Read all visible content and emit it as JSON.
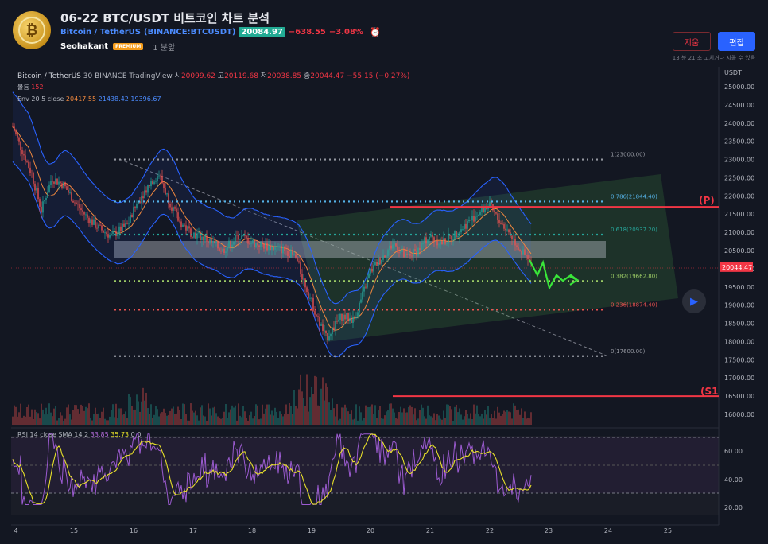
{
  "header": {
    "title": "06-22 BTC/USDT 비트코인 차트 분석",
    "symbol_name": "Bitcoin / TetherUS",
    "symbol_paren_open": "(",
    "exchange_ticker": "BINANCE:BTCUSDT",
    "symbol_paren_close": ")",
    "price": "20084.97",
    "change": "−638.55",
    "change_pct": "−3.08%",
    "author": "Seohakant",
    "badge": "PREMIUM",
    "time_ago": "1 분앞",
    "delete_label": "지움",
    "edit_label": "편집",
    "edit_note": "13 분 21 초 고치거나 지울 수 있음"
  },
  "legend": {
    "pair": "Bitcoin / TetherUS",
    "interval": "30",
    "exchange": "BINANCE",
    "source": "TradingView",
    "o_label": "시",
    "o": "20099.62",
    "h_label": "고",
    "h": "20119.68",
    "l_label": "저",
    "l": "20038.85",
    "c_label": "종",
    "c": "20044.47",
    "chg": "−55.15 (−0.27%)",
    "volume_label": "볼륨",
    "volume": "152",
    "env_label": "Env 20 5 close",
    "env_mid": "20417.55",
    "env_up": "21438.42",
    "env_low": "19396.67",
    "rsi_label": "RSI 14 close SMA 14 2",
    "rsi": "33.85",
    "rsi_sma": "35.73",
    "rsi_zero1": "0",
    "rsi_zero2": "0"
  },
  "axis": {
    "currency": "USDT",
    "price_ticks": [
      "25000.00",
      "24500.00",
      "24000.00",
      "23500.00",
      "23000.00",
      "22500.00",
      "22000.00",
      "21500.00",
      "21000.00",
      "20500.00",
      "20000.00",
      "19500.00",
      "19000.00",
      "18500.00",
      "18000.00",
      "17500.00",
      "17000.00",
      "16500.00",
      "16000.00"
    ],
    "current_price": "20044.47",
    "rsi_ticks": [
      "60.00",
      "40.00",
      "20.00"
    ],
    "time_ticks": [
      "4",
      "15",
      "16",
      "17",
      "18",
      "19",
      "20",
      "21",
      "22",
      "23",
      "24",
      "25"
    ]
  },
  "fib_levels": [
    {
      "label": "1(23000.00)",
      "price": 23000,
      "color": "#9598a1"
    },
    {
      "label": "0.786(21844.40)",
      "price": 21844.4,
      "color": "#56b4e9"
    },
    {
      "label": "0.618(20937.20)",
      "price": 20937.2,
      "color": "#26a69a"
    },
    {
      "label": "0.382(19662.80)",
      "price": 19662.8,
      "color": "#9ccc65"
    },
    {
      "label": "0.236(18874.40)",
      "price": 18874.4,
      "color": "#ef5350"
    },
    {
      "label": "0(17600.00)",
      "price": 17600,
      "color": "#9598a1"
    }
  ],
  "levels": [
    {
      "label": "(P)",
      "price": 21700,
      "color": "#f23645"
    },
    {
      "label": "(S1",
      "price": 16500,
      "color": "#f23645"
    }
  ],
  "colors": {
    "bg": "#131722",
    "up": "#26a69a",
    "down": "#ef5350",
    "env": "#2962ff",
    "ema": "#f0883e",
    "rsi": "#9c5bd1",
    "rsi_sma": "#e8e02a",
    "channel": "#4caf50"
  },
  "icons": {
    "alarm": "alarm-clock-icon",
    "play": "play-icon",
    "logo": "coin-logo-icon"
  }
}
